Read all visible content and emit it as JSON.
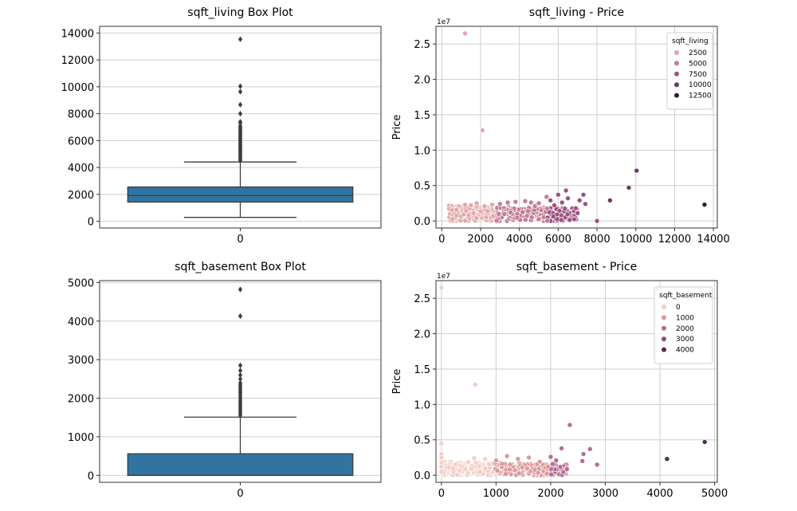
{
  "chart_data": [
    {
      "type": "box",
      "title": "sqft_living Box Plot",
      "categories": [
        "0"
      ],
      "box": {
        "whisker_low": 290,
        "q1": 1427,
        "median": 1910,
        "q3": 2550,
        "whisker_high": 4410
      },
      "outliers": [
        13540,
        10040,
        9640,
        8670,
        8000,
        7400,
        7300,
        7100,
        7000,
        6900,
        6800,
        6700,
        6600,
        6500,
        6400,
        6300,
        6200,
        6100,
        6000,
        5900,
        5800,
        5700,
        5600,
        5500,
        5400,
        5300,
        5200,
        5100,
        5000,
        4900,
        4800,
        4700,
        4600,
        4500
      ],
      "yticks": [
        "0",
        "2000",
        "4000",
        "6000",
        "8000",
        "10000",
        "12000",
        "14000"
      ],
      "ylim": [
        -500,
        14500
      ],
      "grid": "horizontal",
      "color": "#3274a1"
    },
    {
      "type": "scatter",
      "title": "sqft_living - Price",
      "ylabel": "Price",
      "y_offset_label": "1e7",
      "xlim": [
        -300,
        14200
      ],
      "ylim": [
        -0.1,
        2.75
      ],
      "xticks": [
        "0",
        "2000",
        "4000",
        "6000",
        "8000",
        "10000",
        "12000",
        "14000"
      ],
      "yticks": [
        "0.0",
        "0.5",
        "1.0",
        "1.5",
        "2.0",
        "2.5"
      ],
      "grid": "both",
      "legend": {
        "title": "sqft_living",
        "position": "upper-right",
        "entries": [
          {
            "label": "2500",
            "color": "#e2a9a9"
          },
          {
            "label": "5000",
            "color": "#c47d95"
          },
          {
            "label": "7500",
            "color": "#9c5381"
          },
          {
            "label": "10000",
            "color": "#6a3868"
          },
          {
            "label": "12500",
            "color": "#2d1e3e"
          }
        ]
      },
      "points": [
        [
          1200,
          2.65
        ],
        [
          2100,
          1.28
        ],
        [
          13540,
          0.23
        ],
        [
          10040,
          0.71
        ],
        [
          9640,
          0.47
        ],
        [
          8670,
          0.29
        ],
        [
          8000,
          0.0
        ],
        [
          7400,
          0.24
        ],
        [
          7300,
          0.37
        ],
        [
          7100,
          0.29
        ],
        [
          7000,
          0.11
        ],
        [
          6900,
          0.18
        ],
        [
          6500,
          0.32
        ],
        [
          6400,
          0.43
        ],
        [
          6200,
          0.26
        ],
        [
          6000,
          0.37
        ],
        [
          5800,
          0.22
        ],
        [
          5600,
          0.29
        ],
        [
          5400,
          0.34
        ],
        [
          5000,
          0.25
        ],
        [
          4800,
          0.21
        ],
        [
          4600,
          0.26
        ],
        [
          4300,
          0.28
        ],
        [
          3800,
          0.27
        ],
        [
          3400,
          0.26
        ],
        [
          3000,
          0.24
        ],
        [
          2600,
          0.23
        ],
        [
          2200,
          0.21
        ],
        [
          1800,
          0.25
        ],
        [
          1500,
          0.22
        ],
        [
          1200,
          0.23
        ]
      ],
      "dense_band": {
        "x_from": 370,
        "x_to": 7000,
        "y_from": 0.0,
        "y_to": 0.22
      }
    },
    {
      "type": "box",
      "title": "sqft_basement Box Plot",
      "categories": [
        "0"
      ],
      "box": {
        "whisker_low": 0,
        "q1": 0,
        "median": 0,
        "q3": 560,
        "whisker_high": 1510
      },
      "outliers": [
        4820,
        4130,
        2850,
        2720,
        2600,
        2500,
        2400,
        2350,
        2300,
        2250,
        2200,
        2150,
        2100,
        2050,
        2000,
        1950,
        1900,
        1850,
        1800,
        1750,
        1700,
        1650,
        1600,
        1550
      ],
      "yticks": [
        "0",
        "1000",
        "2000",
        "3000",
        "4000",
        "5000"
      ],
      "ylim": [
        -180,
        5050
      ],
      "grid": "horizontal",
      "color": "#3274a1"
    },
    {
      "type": "scatter",
      "title": "sqft_basement - Price",
      "ylabel": "Price",
      "y_offset_label": "1e7",
      "xlim": [
        -100,
        5050
      ],
      "ylim": [
        -0.1,
        2.75
      ],
      "xticks": [
        "0",
        "1000",
        "2000",
        "3000",
        "4000",
        "5000"
      ],
      "yticks": [
        "0.0",
        "0.5",
        "1.0",
        "1.5",
        "2.0",
        "2.5"
      ],
      "grid": "both",
      "legend": {
        "title": "sqft_basement",
        "position": "upper-right",
        "entries": [
          {
            "label": "0",
            "color": "#f2cfc7"
          },
          {
            "label": "1000",
            "color": "#d99a9b"
          },
          {
            "label": "2000",
            "color": "#b66e91"
          },
          {
            "label": "3000",
            "color": "#8c4a7c"
          },
          {
            "label": "4000",
            "color": "#4f2b56"
          }
        ]
      },
      "points": [
        [
          0,
          2.65
        ],
        [
          620,
          1.28
        ],
        [
          0,
          0.45
        ],
        [
          0,
          0.3
        ],
        [
          0,
          0.25
        ],
        [
          0,
          0.18
        ],
        [
          0,
          0.12
        ],
        [
          0,
          0.05
        ],
        [
          4820,
          0.47
        ],
        [
          4130,
          0.23
        ],
        [
          2850,
          0.15
        ],
        [
          2720,
          0.37
        ],
        [
          2600,
          0.3
        ],
        [
          2580,
          0.2
        ],
        [
          2350,
          0.71
        ],
        [
          2200,
          0.38
        ],
        [
          2100,
          0.21
        ],
        [
          2000,
          0.26
        ],
        [
          1800,
          0.19
        ],
        [
          1600,
          0.25
        ],
        [
          1400,
          0.23
        ],
        [
          1200,
          0.27
        ],
        [
          1000,
          0.21
        ],
        [
          800,
          0.23
        ],
        [
          600,
          0.24
        ]
      ],
      "dense_band": {
        "x_from": 0,
        "x_to": 2300,
        "y_from": 0.0,
        "y_to": 0.2
      }
    }
  ]
}
